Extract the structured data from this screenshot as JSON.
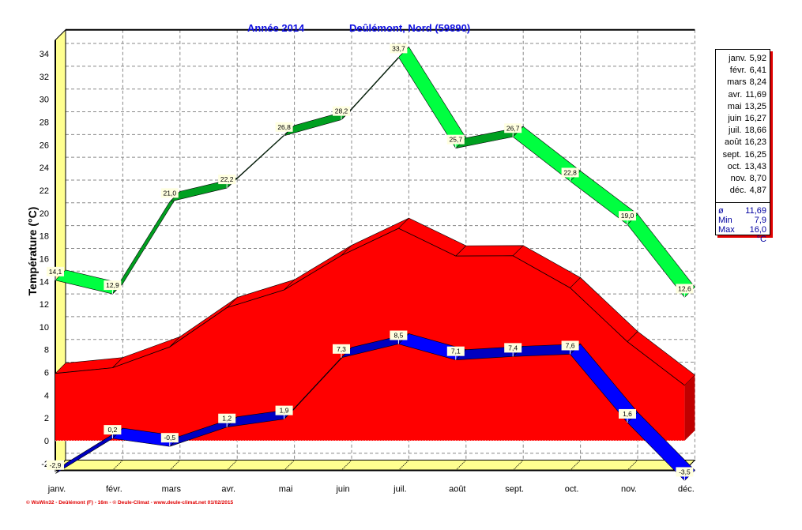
{
  "header": {
    "year": "Année  2014",
    "station": "Deûlémont, Nord (59890)"
  },
  "chart_data": {
    "type": "area",
    "title": "Année  2014 — Deûlémont, Nord (59890)",
    "ylabel": "Température  (°C)",
    "ylim": [
      -2,
      34
    ],
    "yticks": [
      -2,
      0,
      2,
      4,
      6,
      8,
      10,
      12,
      14,
      16,
      18,
      20,
      22,
      24,
      26,
      28,
      30,
      32,
      34
    ],
    "grid": true,
    "categories": [
      "janv.",
      "févr.",
      "mars",
      "avr.",
      "mai",
      "juin",
      "juil.",
      "août",
      "sept.",
      "oct.",
      "nov.",
      "déc."
    ],
    "series": [
      {
        "role": "max",
        "color": "#00ff40",
        "values": [
          14.1,
          12.9,
          21.0,
          22.2,
          26.8,
          28.2,
          33.7,
          25.7,
          26.7,
          22.8,
          19.0,
          12.6
        ],
        "labels": [
          "14,1",
          "12,9",
          "21,0",
          "22,2",
          "26,8",
          "28,2",
          "33,7",
          "25,7",
          "26,7",
          "22,8",
          "19,0",
          "12,6"
        ]
      },
      {
        "role": "mean",
        "color": "#ff0000",
        "values": [
          5.92,
          6.41,
          8.24,
          11.69,
          13.25,
          16.27,
          18.66,
          16.23,
          16.25,
          13.43,
          8.7,
          4.87
        ]
      },
      {
        "role": "min",
        "color": "#0000ff",
        "values": [
          -2.9,
          0.2,
          -0.5,
          1.2,
          1.9,
          7.3,
          8.5,
          7.1,
          7.4,
          7.6,
          1.6,
          -3.5
        ],
        "labels": [
          "-2,9",
          "0,2",
          "-0,5",
          "1,2",
          "1,9",
          "7,3",
          "8,5",
          "7,1",
          "7,4",
          "7,6",
          "1,6",
          "-3,5"
        ]
      }
    ]
  },
  "legend": {
    "rows": [
      {
        "m": "janv.",
        "v": "5,92"
      },
      {
        "m": "févr.",
        "v": "6,41"
      },
      {
        "m": "mars",
        "v": "8,24"
      },
      {
        "m": "avr.",
        "v": "11,69"
      },
      {
        "m": "mai",
        "v": "13,25"
      },
      {
        "m": "juin",
        "v": "16,27"
      },
      {
        "m": "juil.",
        "v": "18,66"
      },
      {
        "m": "août",
        "v": "16,23"
      },
      {
        "m": "sept.",
        "v": "16,25"
      },
      {
        "m": "oct.",
        "v": "13,43"
      },
      {
        "m": "nov.",
        "v": "8,70"
      },
      {
        "m": "déc.",
        "v": "4,87"
      }
    ],
    "avg_label": "ø",
    "avg": "11,69",
    "min_label": "Min",
    "min": "7,9",
    "max_label": "Max",
    "max": "16,0",
    "unit": "°C"
  },
  "footer": "© WsWin32 - Deûlémont (F) - 16m - © Deule-Climat - www.deule-climat.net  01/02/2015"
}
